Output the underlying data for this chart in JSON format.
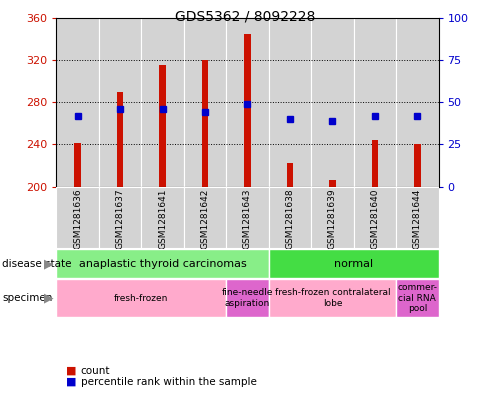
{
  "title": "GDS5362 / 8092228",
  "samples": [
    "GSM1281636",
    "GSM1281637",
    "GSM1281641",
    "GSM1281642",
    "GSM1281643",
    "GSM1281638",
    "GSM1281639",
    "GSM1281640",
    "GSM1281644"
  ],
  "counts": [
    241,
    290,
    315,
    320,
    345,
    222,
    206,
    244,
    240
  ],
  "count_base": 200,
  "percentile_ranks": [
    42,
    46,
    46,
    44,
    49,
    40,
    39,
    42,
    42
  ],
  "ylim_left": [
    200,
    360
  ],
  "ylim_right": [
    0,
    100
  ],
  "yticks_left": [
    200,
    240,
    280,
    320,
    360
  ],
  "yticks_right": [
    0,
    25,
    50,
    75,
    100
  ],
  "bar_color": "#cc1100",
  "dot_color": "#0000cc",
  "cell_bg": "#d3d3d3",
  "plot_bg": "#ffffff",
  "disease_state_groups": [
    {
      "label": "anaplastic thyroid carcinomas",
      "start": 0,
      "end": 5,
      "color": "#88ee88"
    },
    {
      "label": "normal",
      "start": 5,
      "end": 9,
      "color": "#44dd44"
    }
  ],
  "specimen_groups": [
    {
      "label": "fresh-frozen",
      "start": 0,
      "end": 4,
      "color": "#ffaacc"
    },
    {
      "label": "fine-needle\naspiration",
      "start": 4,
      "end": 5,
      "color": "#dd66cc"
    },
    {
      "label": "fresh-frozen contralateral\nlobe",
      "start": 5,
      "end": 8,
      "color": "#ffaacc"
    },
    {
      "label": "commer-\ncial RNA\npool",
      "start": 8,
      "end": 9,
      "color": "#dd66cc"
    }
  ],
  "tick_color_left": "#cc1100",
  "tick_color_right": "#0000cc",
  "bar_width": 0.15,
  "dot_size": 5
}
